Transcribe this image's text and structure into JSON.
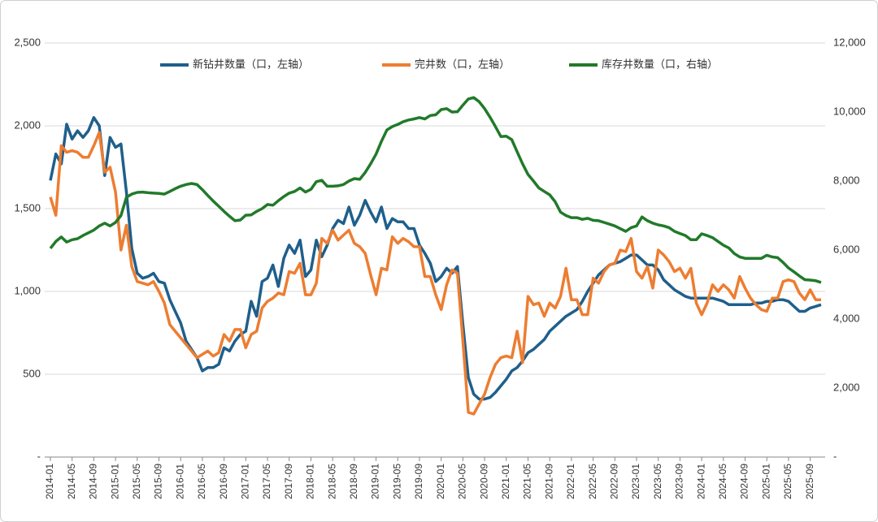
{
  "chart_data": {
    "type": "line",
    "categories": [
      "2014-01",
      null,
      null,
      null,
      "2014-05",
      null,
      null,
      null,
      "2014-09",
      null,
      null,
      null,
      "2015-01",
      null,
      null,
      null,
      "2015-05",
      null,
      null,
      null,
      "2015-09",
      null,
      null,
      null,
      "2016-01",
      null,
      null,
      null,
      "2016-05",
      null,
      null,
      null,
      "2016-09",
      null,
      null,
      null,
      "2017-01",
      null,
      null,
      null,
      "2017-05",
      null,
      null,
      null,
      "2017-09",
      null,
      null,
      null,
      "2018-01",
      null,
      null,
      null,
      "2018-05",
      null,
      null,
      null,
      "2018-09",
      null,
      null,
      null,
      "2019-01",
      null,
      null,
      null,
      "2019-05",
      null,
      null,
      null,
      "2019-09",
      null,
      null,
      null,
      "2020-01",
      null,
      null,
      null,
      "2020-05",
      null,
      null,
      null,
      "2020-09",
      null,
      null,
      null,
      "2021-01",
      null,
      null,
      null,
      "2021-05",
      null,
      null,
      null,
      "2021-09",
      null,
      null,
      null,
      "2022-01",
      null,
      null,
      null,
      "2022-05",
      null,
      null,
      null,
      "2022-09",
      null,
      null,
      null,
      "2023-01",
      null,
      null,
      null,
      "2023-05",
      null,
      null,
      null,
      "2023-09",
      null,
      null,
      null,
      "2024-01",
      null,
      null,
      null,
      "2024-05",
      null,
      null,
      null,
      "2024-09",
      null,
      null,
      null,
      "2025-01",
      null,
      null,
      null,
      "2025-05",
      null,
      null,
      null,
      "2025-09",
      null,
      null
    ],
    "series": [
      {
        "name": "新钻井数量（口，左轴）",
        "color": "#1f5f8b",
        "axis": "y",
        "values": [
          1670,
          1830,
          1770,
          2010,
          1920,
          1970,
          1930,
          1970,
          2050,
          2000,
          1700,
          1930,
          1870,
          1890,
          1600,
          1260,
          1110,
          1080,
          1090,
          1110,
          1060,
          1050,
          950,
          880,
          810,
          700,
          650,
          600,
          520,
          540,
          540,
          560,
          660,
          640,
          700,
          740,
          760,
          940,
          850,
          1060,
          1080,
          1160,
          1030,
          1200,
          1280,
          1230,
          1310,
          1090,
          1130,
          1310,
          1210,
          1280,
          1380,
          1430,
          1410,
          1510,
          1400,
          1460,
          1550,
          1480,
          1420,
          1510,
          1380,
          1440,
          1420,
          1420,
          1380,
          1380,
          1280,
          1230,
          1170,
          1060,
          1090,
          1140,
          1110,
          1150,
          800,
          480,
          380,
          350,
          350,
          360,
          390,
          430,
          470,
          520,
          540,
          580,
          630,
          650,
          680,
          710,
          760,
          790,
          820,
          850,
          870,
          890,
          940,
          1000,
          1050,
          1100,
          1130,
          1160,
          1170,
          1180,
          1200,
          1220,
          1220,
          1190,
          1160,
          1160,
          1130,
          1070,
          1040,
          1010,
          990,
          970,
          960,
          960,
          960,
          960,
          960,
          950,
          940,
          920,
          920,
          920,
          920,
          920,
          930,
          930,
          940,
          940,
          950,
          950,
          940,
          910,
          880,
          880,
          900,
          910,
          920
        ]
      },
      {
        "name": "完井数（口，左轴）",
        "color": "#ed7d31",
        "axis": "y",
        "values": [
          1570,
          1460,
          1880,
          1840,
          1850,
          1840,
          1810,
          1810,
          1880,
          1960,
          1720,
          1750,
          1600,
          1250,
          1400,
          1150,
          1060,
          1050,
          1040,
          1060,
          1000,
          930,
          800,
          760,
          720,
          680,
          640,
          600,
          620,
          640,
          610,
          630,
          740,
          700,
          770,
          770,
          660,
          740,
          760,
          900,
          940,
          960,
          990,
          980,
          1120,
          1110,
          1170,
          980,
          980,
          1050,
          1320,
          1290,
          1370,
          1310,
          1340,
          1370,
          1290,
          1270,
          1230,
          1100,
          980,
          1140,
          1130,
          1330,
          1290,
          1320,
          1300,
          1270,
          1270,
          1090,
          1090,
          980,
          890,
          1040,
          1130,
          1110,
          700,
          270,
          260,
          320,
          380,
          480,
          560,
          600,
          610,
          600,
          760,
          570,
          970,
          920,
          930,
          850,
          930,
          900,
          970,
          1140,
          950,
          950,
          860,
          860,
          1080,
          1050,
          1120,
          1160,
          1170,
          1250,
          1240,
          1320,
          1120,
          1080,
          1150,
          1020,
          1250,
          1220,
          1180,
          1120,
          1140,
          1080,
          1140,
          930,
          860,
          930,
          1040,
          1000,
          1040,
          1010,
          960,
          1090,
          1020,
          960,
          920,
          890,
          880,
          960,
          960,
          1060,
          1070,
          1060,
          990,
          950,
          1010,
          950,
          950
        ]
      },
      {
        "name": "库存井数量（口，右轴）",
        "color": "#217a2a",
        "axis": "y2",
        "values": [
          6050,
          6250,
          6380,
          6230,
          6300,
          6330,
          6420,
          6500,
          6580,
          6700,
          6780,
          6700,
          6800,
          7000,
          7530,
          7620,
          7670,
          7680,
          7660,
          7650,
          7640,
          7620,
          7700,
          7780,
          7850,
          7900,
          7930,
          7900,
          7750,
          7580,
          7420,
          7270,
          7120,
          6980,
          6850,
          6870,
          7010,
          7020,
          7120,
          7200,
          7320,
          7300,
          7430,
          7550,
          7650,
          7700,
          7800,
          7680,
          7760,
          7980,
          8020,
          7850,
          7850,
          7860,
          7900,
          8000,
          8070,
          8050,
          8250,
          8500,
          8780,
          9150,
          9480,
          9580,
          9640,
          9720,
          9770,
          9800,
          9840,
          9800,
          9900,
          9920,
          10070,
          10100,
          10000,
          10010,
          10200,
          10380,
          10420,
          10300,
          10100,
          9850,
          9580,
          9290,
          9300,
          9200,
          8850,
          8500,
          8190,
          8000,
          7800,
          7700,
          7600,
          7400,
          7100,
          7000,
          6940,
          6940,
          6890,
          6920,
          6860,
          6850,
          6800,
          6750,
          6700,
          6620,
          6540,
          6650,
          6700,
          6960,
          6850,
          6780,
          6730,
          6700,
          6650,
          6540,
          6480,
          6420,
          6300,
          6300,
          6470,
          6420,
          6360,
          6250,
          6140,
          6060,
          5900,
          5800,
          5760,
          5760,
          5760,
          5760,
          5850,
          5800,
          5780,
          5640,
          5480,
          5370,
          5250,
          5140,
          5130,
          5110,
          5060
        ]
      }
    ],
    "ylim": [
      0,
      2500
    ],
    "yticks": [
      {
        "value": 0,
        "label": "-"
      },
      500,
      {
        "value": 1000,
        "label": "1,000"
      },
      {
        "value": 1500,
        "label": "1,500"
      },
      {
        "value": 2000,
        "label": "2,000"
      },
      {
        "value": 2500,
        "label": "2,500"
      }
    ],
    "y2lim": [
      0,
      12000
    ],
    "y2ticks": [
      {
        "value": 0,
        "label": "-"
      },
      {
        "value": 2000,
        "label": "2,000"
      },
      {
        "value": 4000,
        "label": "4,000"
      },
      {
        "value": 6000,
        "label": "6,000"
      },
      {
        "value": 8000,
        "label": "8,000"
      },
      {
        "value": 10000,
        "label": "10,000"
      },
      {
        "value": 12000,
        "label": "12,000"
      }
    ],
    "grid": true,
    "legend": "top"
  }
}
